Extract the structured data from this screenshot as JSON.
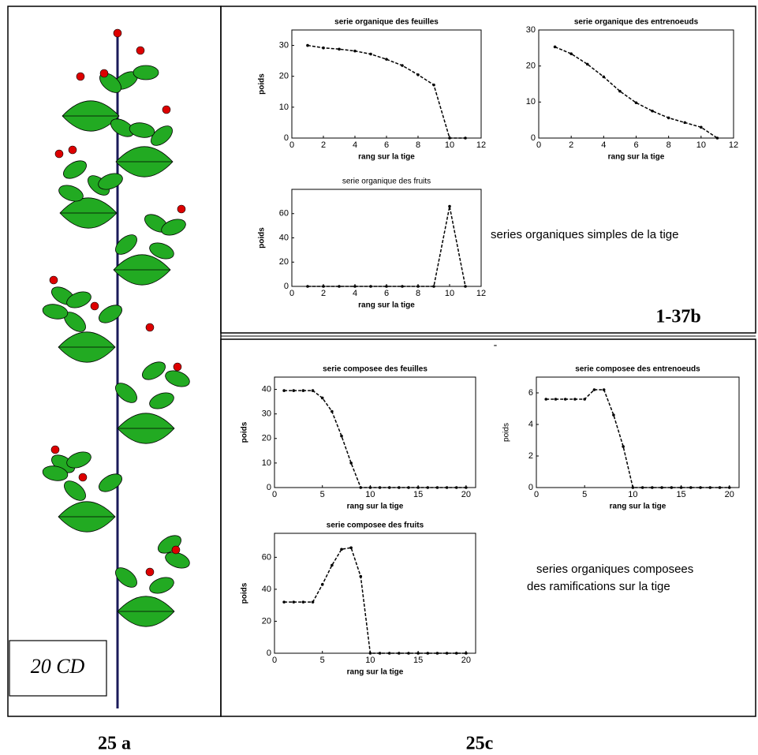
{
  "chart_data": [
    {
      "type": "line",
      "title": "serie organique des feuilles",
      "xlabel": "rang sur la tige",
      "ylabel": "poids",
      "color": "#000000",
      "x": [
        1,
        2,
        3,
        4,
        5,
        6,
        7,
        8,
        9,
        10,
        11
      ],
      "values": [
        30,
        29.2,
        28.8,
        28.2,
        27.2,
        25.5,
        23.5,
        20.5,
        17.2,
        0,
        0
      ],
      "xlim": [
        0,
        12
      ],
      "ylim": [
        0,
        35
      ],
      "xticks": [
        0,
        2,
        4,
        6,
        8,
        10,
        12
      ],
      "yticks": [
        0,
        10,
        20,
        30
      ]
    },
    {
      "type": "line",
      "title": "serie organique des entrenoeuds",
      "xlabel": "rang sur la tige",
      "color": "#000000",
      "x": [
        1,
        2,
        3,
        4,
        5,
        6,
        7,
        8,
        9,
        10,
        11
      ],
      "values": [
        25.3,
        23.4,
        20.5,
        17,
        13,
        9.8,
        7.5,
        5.6,
        4.3,
        3,
        0
      ],
      "xlim": [
        0,
        12
      ],
      "ylim": [
        0,
        30
      ],
      "xticks": [
        0,
        2,
        4,
        6,
        8,
        10,
        12
      ],
      "yticks": [
        0,
        10,
        20,
        30
      ]
    },
    {
      "type": "line",
      "title": "serie organique des fruits",
      "xlabel": "rang sur la tige",
      "ylabel": "poids",
      "color": "#000000",
      "x": [
        1,
        2,
        3,
        4,
        5,
        6,
        7,
        8,
        9,
        10,
        11
      ],
      "values": [
        0,
        0,
        0,
        0,
        0,
        0,
        0,
        0,
        0,
        66,
        0
      ],
      "xlim": [
        0,
        12
      ],
      "ylim": [
        0,
        80
      ],
      "xticks": [
        0,
        2,
        4,
        6,
        8,
        10,
        12
      ],
      "yticks": [
        0,
        20,
        40,
        60
      ]
    },
    {
      "type": "line",
      "title": "serie composee des feuilles",
      "xlabel": "rang sur la tige",
      "ylabel": "poids",
      "color": "#000000",
      "x": [
        1,
        2,
        3,
        4,
        5,
        6,
        7,
        8,
        9,
        10,
        11,
        12,
        13,
        14,
        15,
        16,
        17,
        18,
        19,
        20
      ],
      "values": [
        39.5,
        39.5,
        39.5,
        39.5,
        36.5,
        31,
        21,
        10,
        0,
        0,
        0,
        0,
        0,
        0,
        0,
        0,
        0,
        0,
        0,
        0
      ],
      "xlim": [
        0,
        21
      ],
      "ylim": [
        0,
        45
      ],
      "xticks": [
        0,
        5,
        10,
        15,
        20
      ],
      "yticks": [
        0,
        10,
        20,
        30,
        40
      ]
    },
    {
      "type": "line",
      "title": "serie composee des entrenoeuds",
      "xlabel": "rang sur la tige",
      "ylabel": "poids",
      "color": "#000000",
      "x": [
        1,
        2,
        3,
        4,
        5,
        6,
        7,
        8,
        9,
        10,
        11,
        12,
        13,
        14,
        15,
        16,
        17,
        18,
        19,
        20
      ],
      "values": [
        5.6,
        5.6,
        5.6,
        5.6,
        5.6,
        6.2,
        6.2,
        4.6,
        2.6,
        0,
        0,
        0,
        0,
        0,
        0,
        0,
        0,
        0,
        0,
        0
      ],
      "xlim": [
        0,
        21
      ],
      "ylim": [
        0,
        7
      ],
      "xticks": [
        0,
        5,
        10,
        15,
        20
      ],
      "yticks": [
        0,
        2,
        4,
        6
      ]
    },
    {
      "type": "line",
      "title": "serie composee des fruits",
      "xlabel": "rang sur la tige",
      "ylabel": "poids",
      "color": "#000000",
      "x": [
        1,
        2,
        3,
        4,
        5,
        6,
        7,
        8,
        9,
        10,
        11,
        12,
        13,
        14,
        15,
        16,
        17,
        18,
        19,
        20
      ],
      "values": [
        32,
        32,
        32,
        32,
        43,
        55,
        65,
        66,
        48,
        0,
        0,
        0,
        0,
        0,
        0,
        0,
        0,
        0,
        0,
        0
      ],
      "xlim": [
        0,
        21
      ],
      "ylim": [
        0,
        75
      ],
      "xticks": [
        0,
        5,
        10,
        15,
        20
      ],
      "yticks": [
        0,
        20,
        40,
        60
      ]
    }
  ],
  "figure": {
    "plant_tag": "20 CD",
    "panel_a_label": "25 a",
    "panel_c_label": "25c",
    "code": "1-37b",
    "caption_simple": "series organiques simples de la tige",
    "caption_composed": [
      "series organiques composees",
      "des ramifications  sur la tige"
    ],
    "mark": "-"
  }
}
